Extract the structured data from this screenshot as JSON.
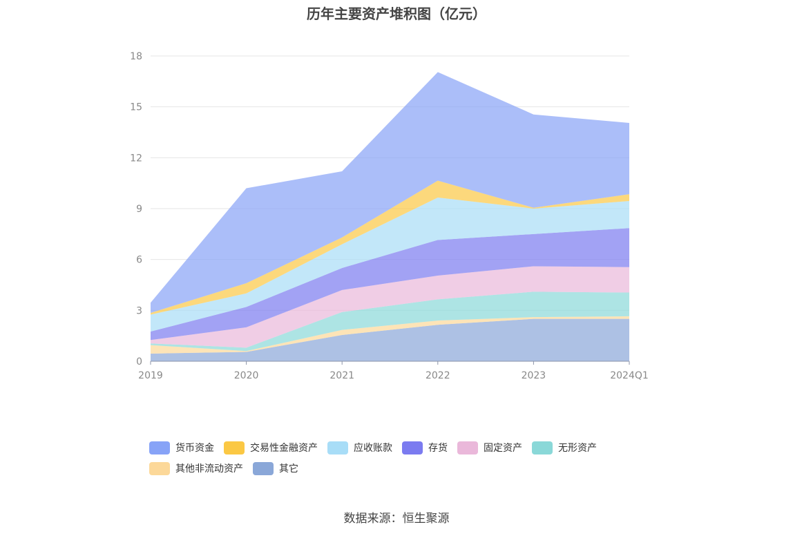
{
  "chart_data": {
    "type": "area",
    "title": "历年主要资产堆积图（亿元）",
    "categories": [
      "2019",
      "2020",
      "2021",
      "2022",
      "2023",
      "2024Q1"
    ],
    "ylim": [
      0,
      18
    ],
    "yticks": [
      0,
      3,
      6,
      9,
      12,
      15,
      18
    ],
    "grid": true,
    "legend_position": "bottom",
    "series": [
      {
        "name": "其它",
        "color": "#8aa7d8",
        "values": [
          0.45,
          0.55,
          1.55,
          2.15,
          2.5,
          2.5
        ]
      },
      {
        "name": "其他非流动资产",
        "color": "#fcd899",
        "values": [
          0.5,
          0.05,
          0.3,
          0.25,
          0.1,
          0.15
        ]
      },
      {
        "name": "无形资产",
        "color": "#8ad8d8",
        "values": [
          0.1,
          0.2,
          1.05,
          1.25,
          1.5,
          1.4
        ]
      },
      {
        "name": "固定资产",
        "color": "#eab8da",
        "values": [
          0.2,
          1.2,
          1.3,
          1.4,
          1.5,
          1.5
        ]
      },
      {
        "name": "存货",
        "color": "#7b7bf0",
        "values": [
          0.5,
          1.2,
          1.3,
          2.1,
          1.9,
          2.3
        ]
      },
      {
        "name": "应收账款",
        "color": "#a8ddf7",
        "values": [
          1.0,
          0.8,
          1.4,
          2.5,
          1.5,
          1.6
        ]
      },
      {
        "name": "交易性金融资产",
        "color": "#fbc844",
        "values": [
          0.1,
          0.6,
          0.4,
          1.0,
          0.05,
          0.4
        ]
      },
      {
        "name": "货币资金",
        "color": "#87a3f7",
        "values": [
          0.6,
          5.6,
          3.9,
          6.4,
          5.5,
          4.2
        ]
      }
    ]
  },
  "legend": {
    "row1": [
      "货币资金",
      "交易性金融资产",
      "应收账款",
      "存货",
      "固定资产",
      "无形资产"
    ],
    "row2": [
      "其他非流动资产",
      "其它"
    ]
  },
  "source": "数据来源：恒生聚源"
}
